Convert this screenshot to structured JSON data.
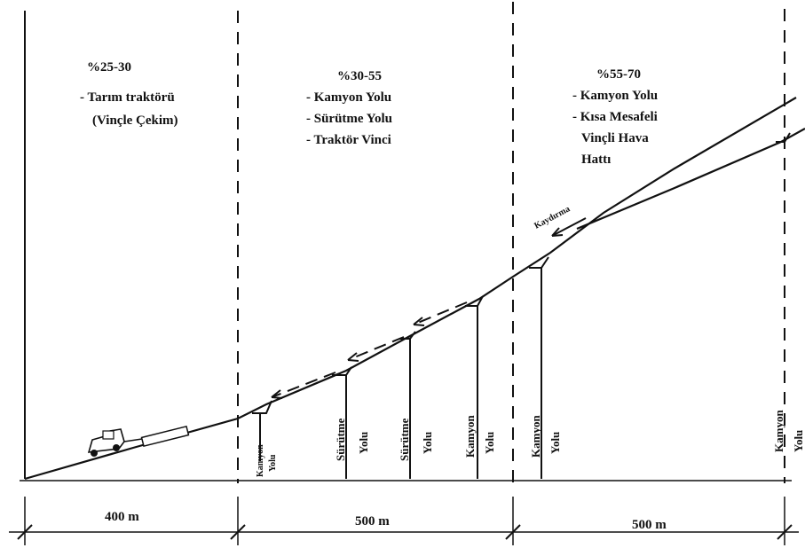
{
  "zones": [
    {
      "grade": "%25-30",
      "lines": [
        "- Tarım traktörü",
        "(Vinçle Çekim)"
      ]
    },
    {
      "grade": "%30-55",
      "lines": [
        "- Kamyon Yolu",
        "- Sürütme Yolu",
        "- Traktör Vinci"
      ]
    },
    {
      "grade": "%55-70",
      "lines": [
        "- Kamyon Yolu",
        "- Kısa Mesafeli",
        "Vinçli Hava",
        "Hattı"
      ]
    }
  ],
  "kaydirma": "Kaydırma",
  "road_labels": [
    {
      "line1": "Kamyon",
      "line2": "Yolu"
    },
    {
      "line1": "Sürütme",
      "line2": "Yolu"
    },
    {
      "line1": "Sürütme",
      "line2": "Yolu"
    },
    {
      "line1": "Kamyon",
      "line2": "Yolu"
    },
    {
      "line1": "Kamyon",
      "line2": "Yolu"
    },
    {
      "line1": "Kamyon",
      "line2": "Yolu"
    }
  ],
  "distances": [
    "400 m",
    "500 m",
    "500 m"
  ]
}
